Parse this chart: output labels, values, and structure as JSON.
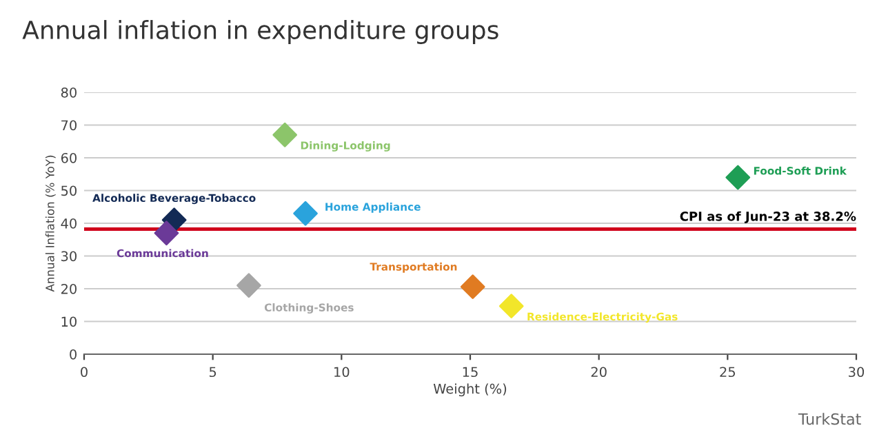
{
  "chart_data": {
    "type": "scatter",
    "title": "Annual inflation in expenditure groups",
    "xlabel": "Weight (%)",
    "ylabel": "Annual Inflation (% YoY)",
    "xlim": [
      0,
      30
    ],
    "xticks": [
      0,
      5,
      10,
      15,
      20,
      25,
      30
    ],
    "ylim": [
      0,
      80
    ],
    "yticks": [
      0,
      10,
      20,
      30,
      40,
      50,
      60,
      70,
      80
    ],
    "grid": "y",
    "marker": "diamond",
    "legend": false,
    "series": [
      {
        "name": "Dining-Lodging",
        "color": "#8cc56a",
        "x": [
          7.8
        ],
        "values": [
          67
        ]
      },
      {
        "name": "Food-Soft Drink",
        "color": "#1e9e55",
        "x": [
          25.4
        ],
        "values": [
          54
        ]
      },
      {
        "name": "Alcoholic Beverage-Tobacco",
        "color": "#132a55",
        "x": [
          3.5
        ],
        "values": [
          41
        ]
      },
      {
        "name": "Home Appliance",
        "color": "#2aa3dc",
        "x": [
          8.6
        ],
        "values": [
          43
        ]
      },
      {
        "name": "Communication",
        "color": "#6b3a98",
        "x": [
          3.2
        ],
        "values": [
          37
        ]
      },
      {
        "name": "Clothing-Shoes",
        "color": "#a6a6a6",
        "x": [
          6.4
        ],
        "values": [
          21
        ]
      },
      {
        "name": "Transportation",
        "color": "#e07b22",
        "x": [
          15.1
        ],
        "values": [
          20.6
        ]
      },
      {
        "name": "Residence-Electricity-Gas",
        "color": "#f2e62a",
        "x": [
          16.6
        ],
        "values": [
          14.7
        ]
      }
    ],
    "ref_lines": [
      {
        "axis": "y",
        "value": 38.2,
        "label": "CPI as of Jun-23 at 38.2%",
        "color": "#d0021b"
      }
    ],
    "annotations": [
      "TurkStat"
    ]
  }
}
